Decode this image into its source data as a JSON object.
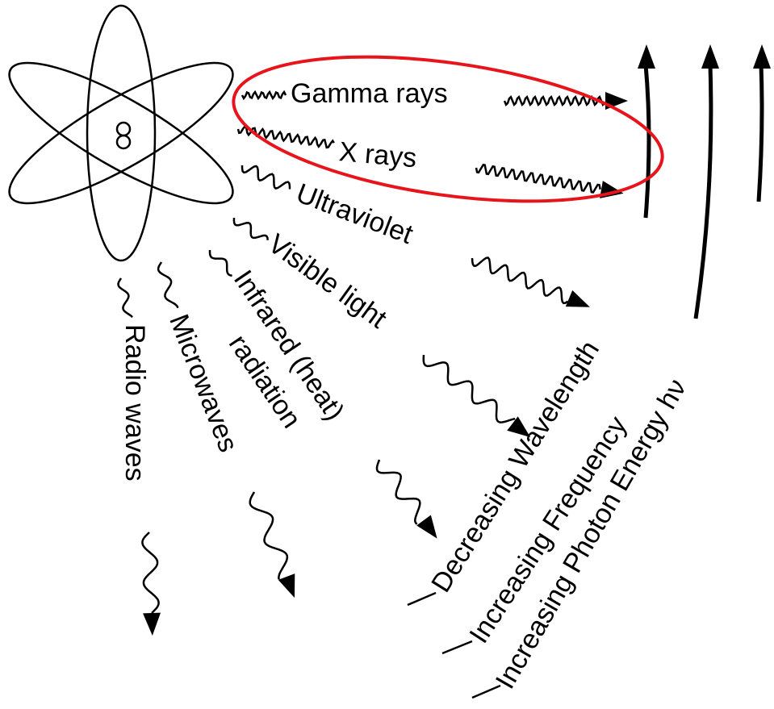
{
  "radiation_types": [
    "Gamma rays",
    "X rays",
    "Ultraviolet",
    "Visible light",
    {
      "lines": [
        "Infrared (heat)",
        "radiation"
      ]
    },
    "Microwaves",
    "Radio waves"
  ],
  "trends": [
    "Decreasing Wavelength",
    "Increasing Frequency",
    "Increasing Photon Energy hν"
  ]
}
